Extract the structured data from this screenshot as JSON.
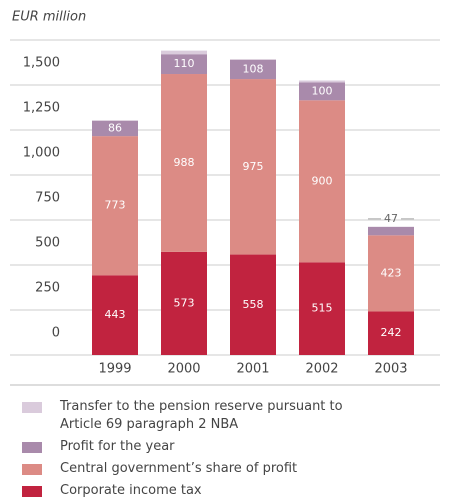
{
  "chart_data": {
    "type": "stacked-bar",
    "y_label": "EUR million",
    "categories": [
      "1999",
      "2000",
      "2001",
      "2002",
      "2003"
    ],
    "series": [
      {
        "name": "Transfer to the pension reserve pursuant to Article 69 paragraph 2 NBA",
        "color": "#dacbdc",
        "values": [
          0,
          20,
          0,
          10,
          0
        ]
      },
      {
        "name": "Profit for the year",
        "color": "#a98aab",
        "values": [
          86,
          110,
          108,
          100,
          47
        ]
      },
      {
        "name": "Central government’s share of profit",
        "color": "#dc8b85",
        "values": [
          773,
          988,
          975,
          900,
          423
        ]
      },
      {
        "name": "Corporate income tax",
        "color": "#c1233f",
        "values": [
          443,
          573,
          558,
          515,
          242
        ]
      }
    ],
    "labeled_series": [
      1,
      2,
      3
    ],
    "ylim": [
      0,
      1750
    ],
    "yticks": [
      0,
      250,
      500,
      750,
      {
        "value": 1000,
        "label": "1,000"
      },
      {
        "value": 1250,
        "label": "1,250"
      },
      {
        "value": 1500,
        "label": "1,500"
      }
    ],
    "grid": true
  }
}
